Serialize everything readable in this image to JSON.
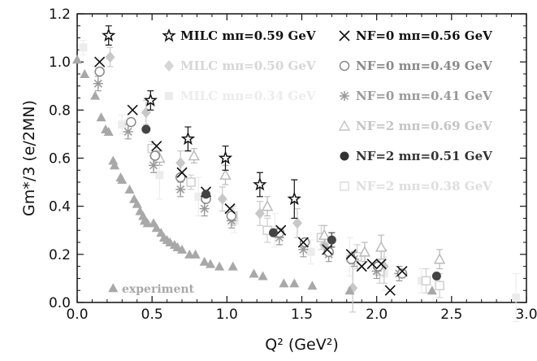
{
  "chart_data": {
    "type": "scatter",
    "title": "",
    "xlabel": "Q² (GeV²)",
    "ylabel": "Gm*/3 (e/2MN)",
    "xlim": [
      0.0,
      3.0
    ],
    "ylim": [
      0.0,
      1.2
    ],
    "x_tick_labels": [
      "0.0",
      "0.5",
      "1.0",
      "1.5",
      "2.0",
      "2.5",
      "3.0"
    ],
    "y_tick_labels": [
      "0.0",
      "0.2",
      "0.4",
      "0.6",
      "0.8",
      "1.0",
      "1.2"
    ],
    "grid": false,
    "legend_placement": "top-right",
    "annotations": [
      "experiment"
    ],
    "series": [
      {
        "name": "MILC mπ=0.59 GeV",
        "marker": "star-open",
        "color": "#111111",
        "points": [
          [
            0.21,
            1.11,
            0.04
          ],
          [
            0.49,
            0.84,
            0.04
          ],
          [
            0.74,
            0.68,
            0.05
          ],
          [
            0.99,
            0.6,
            0.05
          ],
          [
            1.22,
            0.49,
            0.05
          ],
          [
            1.45,
            0.43,
            0.08
          ]
        ]
      },
      {
        "name": "MILC mπ=0.50 GeV",
        "marker": "diamond-filled",
        "color": "#c8c8c8",
        "points": [
          [
            0.22,
            1.02,
            0.04
          ],
          [
            0.46,
            0.79,
            0.05
          ],
          [
            0.69,
            0.58,
            0.05
          ],
          [
            0.97,
            0.43,
            0.05
          ],
          [
            1.22,
            0.37,
            0.05
          ],
          [
            1.47,
            0.33,
            0.06
          ],
          [
            1.65,
            0.24,
            0.04
          ],
          [
            1.84,
            0.06,
            0.1
          ],
          [
            2.05,
            0.15,
            0.07
          ]
        ]
      },
      {
        "name": "MILC mπ=0.34 GeV",
        "marker": "square-filled",
        "color": "#ececec",
        "points": [
          [
            0.04,
            1.06,
            0.03
          ],
          [
            0.3,
            0.74,
            0.04
          ],
          [
            0.55,
            0.53,
            0.1
          ],
          [
            0.81,
            0.44,
            0.08
          ],
          [
            1.05,
            0.34,
            0.05
          ],
          [
            1.32,
            0.3,
            0.07
          ],
          [
            1.56,
            0.21,
            0.05
          ],
          [
            1.82,
            0.19,
            0.08
          ],
          [
            2.05,
            0.12,
            0.07
          ],
          [
            2.3,
            0.09,
            0.05
          ],
          [
            2.93,
            0.02,
            0.1
          ]
        ]
      },
      {
        "name": "NF=0 mπ=0.56 GeV",
        "marker": "x-cross",
        "color": "#111111",
        "points": [
          [
            0.15,
            1.0,
            0.02
          ],
          [
            0.37,
            0.8,
            0.02
          ],
          [
            0.53,
            0.65,
            0.02
          ],
          [
            0.7,
            0.54,
            0.02
          ],
          [
            0.86,
            0.46,
            0.02
          ],
          [
            1.02,
            0.39,
            0.02
          ],
          [
            1.36,
            0.3,
            0.02
          ],
          [
            1.51,
            0.25,
            0.02
          ],
          [
            1.67,
            0.22,
            0.02
          ],
          [
            1.83,
            0.2,
            0.02
          ],
          [
            1.97,
            0.16,
            0.02
          ],
          [
            2.03,
            0.16,
            0.02
          ],
          [
            2.17,
            0.13,
            0.02
          ],
          [
            2.09,
            0.05,
            0.02
          ],
          [
            1.9,
            0.15,
            0.02
          ]
        ]
      },
      {
        "name": "NF=0 mπ=0.49 GeV",
        "marker": "circle-open",
        "color": "#888888",
        "points": [
          [
            0.15,
            0.96,
            0.02
          ],
          [
            0.36,
            0.75,
            0.02
          ],
          [
            0.52,
            0.61,
            0.02
          ],
          [
            0.69,
            0.52,
            0.02
          ],
          [
            0.86,
            0.43,
            0.02
          ],
          [
            1.03,
            0.36,
            0.02
          ],
          [
            1.35,
            0.29,
            0.02
          ],
          [
            1.52,
            0.25,
            0.02
          ],
          [
            1.68,
            0.21,
            0.02
          ],
          [
            1.83,
            0.18,
            0.02
          ],
          [
            2.01,
            0.15,
            0.02
          ],
          [
            2.17,
            0.12,
            0.02
          ]
        ]
      },
      {
        "name": "NF=0 mπ=0.41 GeV",
        "marker": "asterisk",
        "color": "#999999",
        "points": [
          [
            0.14,
            0.91,
            0.03
          ],
          [
            0.34,
            0.71,
            0.03
          ],
          [
            0.51,
            0.57,
            0.03
          ],
          [
            0.69,
            0.47,
            0.03
          ],
          [
            0.85,
            0.39,
            0.03
          ],
          [
            1.03,
            0.34,
            0.03
          ],
          [
            1.35,
            0.27,
            0.03
          ],
          [
            1.51,
            0.22,
            0.03
          ],
          [
            1.68,
            0.2,
            0.03
          ],
          [
            1.85,
            0.18,
            0.03
          ],
          [
            2.0,
            0.13,
            0.03
          ],
          [
            2.15,
            0.12,
            0.03
          ]
        ]
      },
      {
        "name": "NF=2 mπ=0.69 GeV",
        "marker": "triangle-open",
        "color": "#b8b8b8",
        "points": [
          [
            0.55,
            0.6,
            0.03
          ],
          [
            0.78,
            0.61,
            0.03
          ],
          [
            0.99,
            0.53,
            0.04
          ],
          [
            1.27,
            0.4,
            0.04
          ],
          [
            1.65,
            0.28,
            0.04
          ],
          [
            1.92,
            0.21,
            0.04
          ],
          [
            2.03,
            0.23,
            0.05
          ],
          [
            2.42,
            0.18,
            0.04
          ]
        ]
      },
      {
        "name": "NF=2 mπ=0.51 GeV",
        "marker": "circle-filled",
        "color": "#444444",
        "points": [
          [
            0.46,
            0.72,
            0.02
          ],
          [
            0.86,
            0.45,
            0.02
          ],
          [
            1.31,
            0.29,
            0.02
          ],
          [
            1.7,
            0.26,
            0.03
          ],
          [
            2.4,
            0.11,
            0.02
          ]
        ]
      },
      {
        "name": "NF=2 mπ=0.38 GeV",
        "marker": "square-open",
        "color": "#cfcfcf",
        "points": [
          [
            0.5,
            0.64,
            0.03
          ],
          [
            0.76,
            0.5,
            0.03
          ],
          [
            1.04,
            0.36,
            0.04
          ],
          [
            1.27,
            0.3,
            0.05
          ],
          [
            1.63,
            0.27,
            0.05
          ],
          [
            1.87,
            0.19,
            0.05
          ],
          [
            2.02,
            0.13,
            0.05
          ],
          [
            2.33,
            0.09,
            0.05
          ],
          [
            2.42,
            0.07,
            0.05
          ]
        ]
      },
      {
        "name": "experiment",
        "marker": "triangle-filled",
        "color": "#a8a8a8",
        "points": [
          [
            0.0,
            1.01
          ],
          [
            0.05,
            0.95
          ],
          [
            0.12,
            0.86
          ],
          [
            0.16,
            0.77
          ],
          [
            0.19,
            0.72
          ],
          [
            0.21,
            0.71
          ],
          [
            0.24,
            0.59
          ],
          [
            0.25,
            0.57
          ],
          [
            0.29,
            0.52
          ],
          [
            0.3,
            0.51
          ],
          [
            0.35,
            0.47
          ],
          [
            0.38,
            0.43
          ],
          [
            0.4,
            0.41
          ],
          [
            0.42,
            0.38
          ],
          [
            0.44,
            0.36
          ],
          [
            0.45,
            0.34
          ],
          [
            0.47,
            0.33
          ],
          [
            0.51,
            0.33
          ],
          [
            0.53,
            0.31
          ],
          [
            0.56,
            0.29
          ],
          [
            0.58,
            0.27
          ],
          [
            0.6,
            0.26
          ],
          [
            0.62,
            0.25
          ],
          [
            0.65,
            0.24
          ],
          [
            0.67,
            0.23
          ],
          [
            0.7,
            0.22
          ],
          [
            0.75,
            0.2
          ],
          [
            0.79,
            0.2
          ],
          [
            0.85,
            0.17
          ],
          [
            0.89,
            0.16
          ],
          [
            0.95,
            0.15
          ],
          [
            1.04,
            0.15
          ],
          [
            1.18,
            0.12
          ],
          [
            1.24,
            0.11
          ],
          [
            1.38,
            0.08
          ],
          [
            1.45,
            0.08
          ],
          [
            1.57,
            0.07
          ],
          [
            1.82,
            0.05
          ],
          [
            2.37,
            0.05
          ],
          [
            0.24,
            0.06
          ]
        ]
      }
    ],
    "legend_entries": [
      {
        "label": "MILC  mπ=0.59 GeV",
        "marker": "star-open",
        "color": "#111111",
        "column": 0
      },
      {
        "label": "MILC  mπ=0.50 GeV",
        "marker": "diamond-filled",
        "color": "#d6d6d6",
        "column": 0
      },
      {
        "label": "MILC  mπ=0.34 GeV",
        "marker": "square-filled",
        "color": "#ececec",
        "column": 0
      },
      {
        "label": "NF=0  mπ=0.56 GeV",
        "marker": "x-cross",
        "color": "#111111",
        "column": 1
      },
      {
        "label": "NF=0  mπ=0.49 GeV",
        "marker": "circle-open",
        "color": "#888888",
        "column": 1
      },
      {
        "label": "NF=0  mπ=0.41 GeV",
        "marker": "asterisk",
        "color": "#999999",
        "column": 1
      },
      {
        "label": "NF=2  mπ=0.69 GeV",
        "marker": "triangle-open",
        "color": "#c4c4c4",
        "column": 1
      },
      {
        "label": "NF=2  mπ=0.51 GeV",
        "marker": "circle-filled",
        "color": "#333333",
        "column": 1
      },
      {
        "label": "NF=2  mπ=0.38 GeV",
        "marker": "square-open",
        "color": "#dedede",
        "column": 1
      }
    ]
  }
}
